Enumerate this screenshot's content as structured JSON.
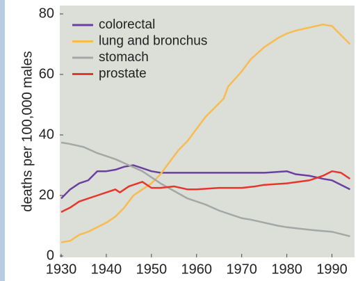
{
  "chart_data": {
    "type": "line",
    "y_label": "deaths per 100,000 males",
    "xlim": [
      1930,
      1995
    ],
    "xticks": [
      1930,
      1940,
      1950,
      1960,
      1970,
      1980,
      1990
    ],
    "ylim": [
      0,
      80
    ],
    "yticks": [
      0,
      20,
      40,
      60,
      80
    ],
    "legend": "top-left",
    "series": [
      {
        "name": "colorectal",
        "color": "#6b3fa0",
        "x": [
          1930,
          1932,
          1934,
          1936,
          1938,
          1940,
          1942,
          1944,
          1946,
          1948,
          1950,
          1952,
          1955,
          1960,
          1965,
          1970,
          1975,
          1980,
          1982,
          1985,
          1988,
          1990,
          1992,
          1994
        ],
        "values": [
          19,
          22,
          24,
          25,
          28,
          28,
          28.5,
          29.5,
          30,
          29,
          28,
          27.5,
          27.5,
          27.5,
          27.5,
          27.5,
          27.5,
          28,
          27,
          26.5,
          25.5,
          25,
          23.5,
          22
        ]
      },
      {
        "name": "lung and bronchus",
        "color": "#f8bb50",
        "x": [
          1930,
          1932,
          1934,
          1936,
          1938,
          1940,
          1942,
          1944,
          1946,
          1948,
          1950,
          1952,
          1954,
          1956,
          1958,
          1960,
          1962,
          1964,
          1966,
          1967,
          1970,
          1972,
          1975,
          1978,
          1980,
          1982,
          1985,
          1988,
          1990,
          1992,
          1994
        ],
        "values": [
          4.5,
          5,
          7,
          8,
          9.5,
          11,
          13,
          16,
          20,
          22,
          24,
          27,
          31,
          35,
          38,
          42,
          46,
          49,
          52,
          56,
          61,
          65,
          69,
          72,
          73.5,
          74.5,
          75.5,
          76.5,
          76,
          73,
          70
        ]
      },
      {
        "name": "stomach",
        "color": "#a3a7a6",
        "x": [
          1930,
          1932,
          1935,
          1938,
          1940,
          1942,
          1945,
          1948,
          1950,
          1952,
          1955,
          1958,
          1960,
          1962,
          1965,
          1968,
          1970,
          1972,
          1975,
          1978,
          1980,
          1983,
          1986,
          1990,
          1994
        ],
        "values": [
          37.5,
          37,
          36,
          34,
          33,
          32,
          30,
          28,
          26,
          24,
          21.5,
          19,
          18,
          17,
          15,
          13.5,
          12.5,
          12,
          11,
          10,
          9.5,
          9,
          8.5,
          8,
          6.5
        ]
      },
      {
        "name": "prostate",
        "color": "#e8352b",
        "x": [
          1930,
          1932,
          1934,
          1936,
          1938,
          1940,
          1942,
          1943,
          1945,
          1947,
          1948,
          1950,
          1952,
          1955,
          1958,
          1960,
          1965,
          1970,
          1973,
          1975,
          1980,
          1985,
          1988,
          1990,
          1992,
          1994
        ],
        "values": [
          14.5,
          16,
          18,
          19,
          20,
          21,
          22,
          21,
          23,
          24,
          24.5,
          22.5,
          22.5,
          23,
          22,
          22,
          22.5,
          22.5,
          23,
          23.5,
          24,
          25,
          26.5,
          28,
          27.5,
          25.5
        ]
      }
    ]
  }
}
